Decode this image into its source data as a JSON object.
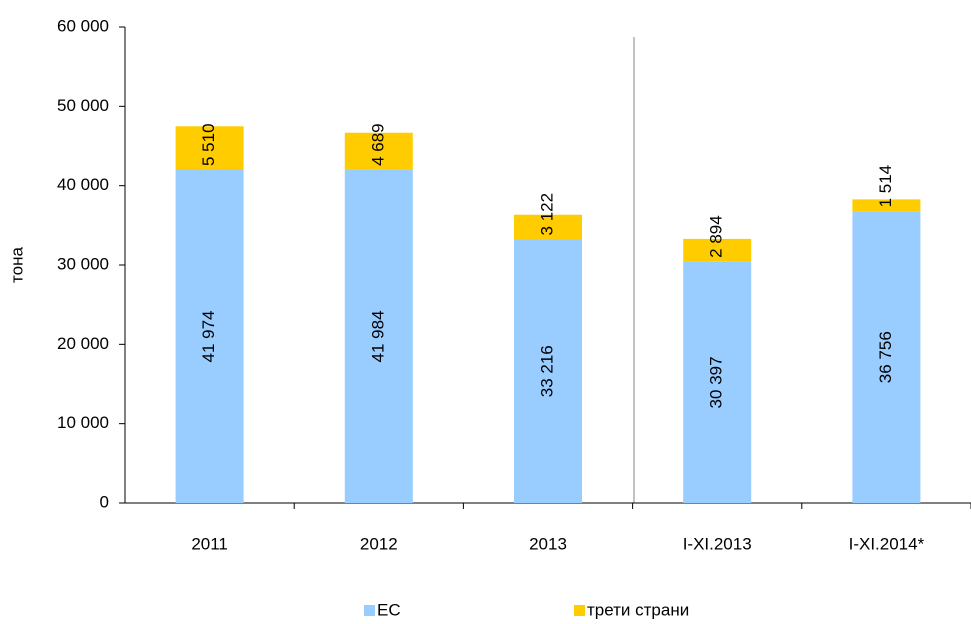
{
  "chart_data": {
    "type": "stacked_bar",
    "y_label": "тона",
    "categories": [
      "2011",
      "2012",
      "2013",
      "I-XI.2013",
      "I-XI.2014*"
    ],
    "series": [
      {
        "name": "ЕС",
        "color": "#99ccff",
        "values": [
          41974,
          41984,
          33216,
          30397,
          36756
        ],
        "value_labels": [
          "41 974",
          "41 984",
          "33 216",
          "30 397",
          "36 756"
        ]
      },
      {
        "name": "трети страни",
        "color": "#ffcc00",
        "values": [
          5510,
          4689,
          3122,
          2894,
          1514
        ],
        "value_labels": [
          "5 510",
          "4 689",
          "3 122",
          "2 894",
          "1 514"
        ]
      }
    ],
    "ylim": [
      0,
      60000
    ],
    "yticks": [
      {
        "value": 0,
        "label": "0"
      },
      {
        "value": 10000,
        "label": "10 000"
      },
      {
        "value": 20000,
        "label": "20 000"
      },
      {
        "value": 30000,
        "label": "30 000"
      },
      {
        "value": 40000,
        "label": "40 000"
      },
      {
        "value": 50000,
        "label": "50 000"
      },
      {
        "value": 60000,
        "label": "60 000"
      }
    ],
    "legend": "bottom"
  }
}
